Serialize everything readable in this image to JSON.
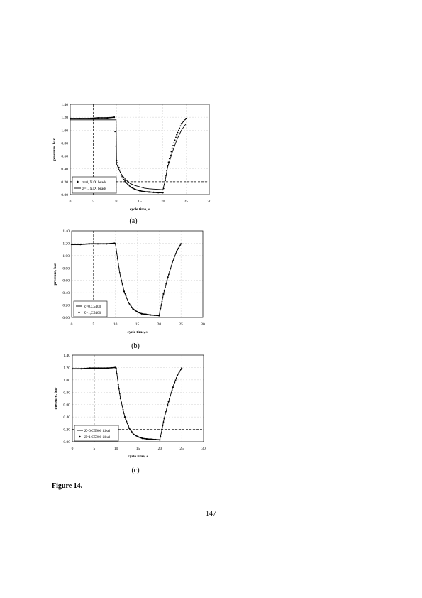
{
  "figure_title": "Figure 14.",
  "page_number": "147",
  "chart_data": [
    {
      "type": "scatter",
      "caption": "(a)",
      "xlabel": "cycle time, s",
      "ylabel": "pressure, bar",
      "xlim": [
        0,
        30
      ],
      "ylim": [
        0,
        1.4
      ],
      "xticks": [
        0,
        5,
        10,
        15,
        20,
        25,
        30
      ],
      "xtick_labels": [
        "0",
        "5",
        "10",
        "15",
        "20",
        "25",
        "30"
      ],
      "yticks": [
        0,
        0.2,
        0.4,
        0.6,
        0.8,
        1.0,
        1.2,
        1.4
      ],
      "ytick_labels": [
        "0.00",
        "0.20",
        "0.40",
        "0.60",
        "0.80",
        "1.00",
        "1.20",
        "1.40"
      ],
      "grid": true,
      "legend_position": "bottom-left",
      "reference_lines": {
        "vertical_x": 5,
        "horizontal_y": 0.2
      },
      "series": [
        {
          "name": "z=0, NaX beads",
          "style": "points",
          "x": [
            0,
            2,
            4,
            6,
            8,
            9.5,
            10,
            10.5,
            11,
            12,
            13,
            14,
            15,
            16,
            17,
            18,
            19,
            20,
            20.5,
            21,
            22,
            23,
            24,
            25
          ],
          "y": [
            1.18,
            1.18,
            1.18,
            1.19,
            1.19,
            1.2,
            0.53,
            0.42,
            0.3,
            0.19,
            0.12,
            0.08,
            0.06,
            0.045,
            0.04,
            0.035,
            0.03,
            0.03,
            0.22,
            0.45,
            0.72,
            0.93,
            1.1,
            1.18
          ]
        },
        {
          "name": "z=1, NaX beads",
          "style": "line",
          "x": [
            0,
            2,
            4,
            6,
            8,
            9.9,
            10,
            10.5,
            11,
            12,
            13,
            14,
            15,
            16,
            17,
            18,
            19,
            20,
            20.5,
            21,
            22,
            23,
            24,
            25
          ],
          "y": [
            1.16,
            1.16,
            1.16,
            1.16,
            1.16,
            1.16,
            0.48,
            0.39,
            0.32,
            0.23,
            0.17,
            0.14,
            0.12,
            0.1,
            0.09,
            0.085,
            0.08,
            0.075,
            0.22,
            0.42,
            0.65,
            0.85,
            1.0,
            1.1
          ]
        }
      ]
    },
    {
      "type": "scatter",
      "caption": "(b)",
      "xlabel": "cycle time, s",
      "ylabel": "pressure, bar",
      "xlim": [
        0,
        30
      ],
      "ylim": [
        0,
        1.4
      ],
      "xticks": [
        0,
        5,
        10,
        15,
        20,
        25,
        30
      ],
      "xtick_labels": [
        "0",
        "5",
        "10",
        "15",
        "20",
        "25",
        "30"
      ],
      "yticks": [
        0,
        0.2,
        0.4,
        0.6,
        0.8,
        1.0,
        1.2,
        1.4
      ],
      "ytick_labels": [
        "0.00",
        "0.20",
        "0.40",
        "0.60",
        "0.80",
        "1.00",
        "1.20",
        "1.40"
      ],
      "grid": true,
      "legend_position": "bottom-left",
      "reference_lines": {
        "vertical_x": 5,
        "horizontal_y": 0.2
      },
      "series": [
        {
          "name": "Z=0,C5400",
          "style": "line",
          "x": [
            0,
            2,
            4,
            6,
            8,
            9.8,
            10,
            10.5,
            11,
            12,
            13,
            14,
            15,
            16,
            17,
            18,
            19,
            20,
            20.5,
            21,
            22,
            23,
            24,
            25
          ],
          "y": [
            1.18,
            1.18,
            1.19,
            1.19,
            1.19,
            1.2,
            1.19,
            0.95,
            0.72,
            0.42,
            0.24,
            0.14,
            0.09,
            0.06,
            0.05,
            0.04,
            0.035,
            0.03,
            0.2,
            0.38,
            0.65,
            0.88,
            1.07,
            1.19
          ]
        },
        {
          "name": "Z=1,C5400",
          "style": "points",
          "x": [
            0,
            2,
            4,
            6,
            8,
            9.8,
            10,
            10.5,
            11,
            12,
            13,
            14,
            15,
            16,
            17,
            18,
            19,
            20,
            20.5,
            21,
            22,
            23,
            24,
            25
          ],
          "y": [
            1.18,
            1.18,
            1.19,
            1.19,
            1.19,
            1.2,
            1.19,
            0.95,
            0.72,
            0.42,
            0.24,
            0.14,
            0.09,
            0.06,
            0.05,
            0.04,
            0.035,
            0.03,
            0.2,
            0.38,
            0.65,
            0.88,
            1.07,
            1.19
          ]
        }
      ]
    },
    {
      "type": "scatter",
      "caption": "(c)",
      "xlabel": "cycle time, s",
      "ylabel": "pressure, bar",
      "xlim": [
        0,
        30
      ],
      "ylim": [
        0,
        1.4
      ],
      "xticks": [
        0,
        5,
        10,
        15,
        20,
        25,
        30
      ],
      "xtick_labels": [
        "0",
        "5",
        "10",
        "15",
        "20",
        "25",
        "30"
      ],
      "yticks": [
        0,
        0.2,
        0.4,
        0.6,
        0.8,
        1.0,
        1.2,
        1.4
      ],
      "ytick_labels": [
        "0.00",
        "0.20",
        "0.40",
        "0.60",
        "0.80",
        "1.00",
        "1.20",
        "1.40"
      ],
      "grid": true,
      "legend_position": "bottom-left",
      "reference_lines": {
        "vertical_x": 5,
        "horizontal_y": 0.2
      },
      "series": [
        {
          "name": "Z=0,C5900 ideal",
          "style": "line",
          "x": [
            0,
            2,
            4,
            6,
            8,
            9.8,
            10,
            10.5,
            11,
            12,
            13,
            14,
            15,
            16,
            17,
            18,
            19,
            20,
            20.5,
            21,
            22,
            23,
            24,
            25
          ],
          "y": [
            1.18,
            1.18,
            1.19,
            1.19,
            1.19,
            1.2,
            1.19,
            0.93,
            0.7,
            0.4,
            0.22,
            0.12,
            0.08,
            0.055,
            0.045,
            0.04,
            0.035,
            0.03,
            0.2,
            0.38,
            0.65,
            0.88,
            1.07,
            1.19
          ]
        },
        {
          "name": "Z=1,C5900 ideal",
          "style": "points",
          "x": [
            0,
            2,
            4,
            6,
            8,
            9.8,
            10,
            10.5,
            11,
            12,
            13,
            14,
            15,
            16,
            17,
            18,
            19,
            20,
            20.5,
            21,
            22,
            23,
            24,
            25
          ],
          "y": [
            1.18,
            1.18,
            1.19,
            1.19,
            1.19,
            1.2,
            1.19,
            0.93,
            0.7,
            0.4,
            0.22,
            0.12,
            0.08,
            0.055,
            0.045,
            0.04,
            0.035,
            0.03,
            0.2,
            0.38,
            0.65,
            0.88,
            1.07,
            1.19
          ]
        }
      ]
    }
  ]
}
